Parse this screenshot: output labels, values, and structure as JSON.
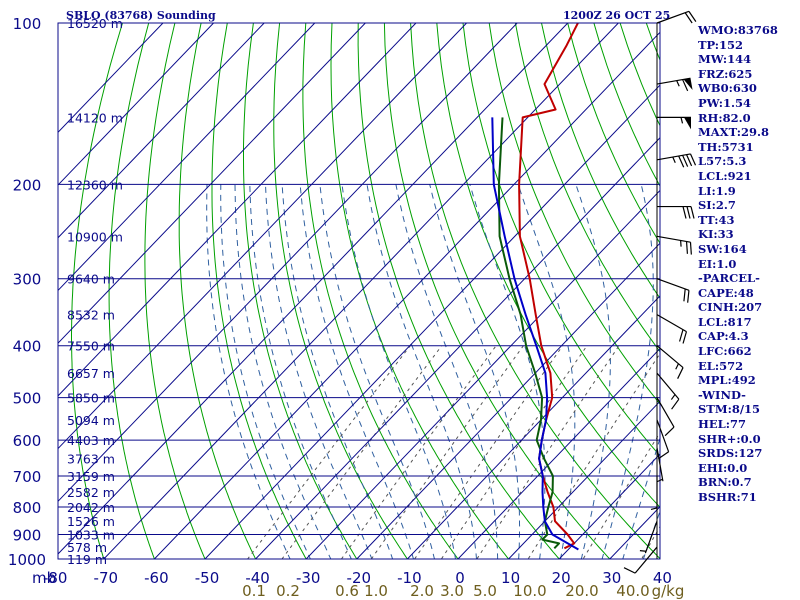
{
  "chart_data": {
    "type": "line",
    "title": "SBLO (83768) Sounding",
    "valid_time": "1200Z 26 OCT 25",
    "y_axis_label": "mb",
    "pressure_levels": [
      100,
      200,
      300,
      400,
      500,
      600,
      700,
      800,
      900,
      1000
    ],
    "temperature_ticks": [
      -80,
      -70,
      -60,
      -50,
      -40,
      -30,
      -20,
      -10,
      0,
      10,
      20,
      30,
      40
    ],
    "mixing_ratio_labels": [
      "0.1",
      "0.2",
      "0.6",
      "1.0",
      "2.0",
      "3.0",
      "5.0",
      "10.0",
      "20.0",
      "40.0",
      "g/kg"
    ],
    "height_labels": [
      {
        "p": 100,
        "text": "16520 m"
      },
      {
        "p": 150,
        "text": "14120 m"
      },
      {
        "p": 200,
        "text": "12360 m"
      },
      {
        "p": 250,
        "text": "10900 m"
      },
      {
        "p": 300,
        "text": "9640 m"
      },
      {
        "p": 350,
        "text": "8532 m"
      },
      {
        "p": 400,
        "text": "7550 m"
      },
      {
        "p": 450,
        "text": "6657 m"
      },
      {
        "p": 500,
        "text": "5850 m"
      },
      {
        "p": 550,
        "text": "5094 m"
      },
      {
        "p": 600,
        "text": "4403 m"
      },
      {
        "p": 650,
        "text": "3763 m"
      },
      {
        "p": 700,
        "text": "3159 m"
      },
      {
        "p": 750,
        "text": "2582 m"
      },
      {
        "p": 800,
        "text": "2042 m"
      },
      {
        "p": 850,
        "text": "1526 m"
      },
      {
        "p": 900,
        "text": "1033 m"
      },
      {
        "p": 950,
        "text": "578 m"
      },
      {
        "p": 1000,
        "text": "119 m"
      }
    ],
    "series": [
      {
        "name": "Temperature",
        "color": "#c00000",
        "points": [
          [
            955,
            19
          ],
          [
            935,
            20
          ],
          [
            900,
            17
          ],
          [
            850,
            12
          ],
          [
            800,
            9
          ],
          [
            750,
            5
          ],
          [
            700,
            1
          ],
          [
            650,
            -3
          ],
          [
            600,
            -6
          ],
          [
            550,
            -9
          ],
          [
            500,
            -12
          ],
          [
            450,
            -17
          ],
          [
            400,
            -24
          ],
          [
            350,
            -31
          ],
          [
            300,
            -39
          ],
          [
            250,
            -49
          ],
          [
            200,
            -59
          ],
          [
            150,
            -71
          ],
          [
            145,
            -66
          ],
          [
            130,
            -73
          ],
          [
            110,
            -76
          ],
          [
            100,
            -78
          ]
        ]
      },
      {
        "name": "Dewpoint",
        "color": "#0a5a0a",
        "points": [
          [
            955,
            17
          ],
          [
            935,
            17
          ],
          [
            920,
            13
          ],
          [
            900,
            13
          ],
          [
            850,
            10
          ],
          [
            800,
            8
          ],
          [
            750,
            6
          ],
          [
            700,
            3
          ],
          [
            650,
            -2
          ],
          [
            600,
            -7
          ],
          [
            550,
            -10
          ],
          [
            500,
            -14
          ],
          [
            450,
            -20
          ],
          [
            400,
            -27
          ],
          [
            350,
            -34
          ],
          [
            300,
            -43
          ],
          [
            250,
            -53
          ],
          [
            200,
            -63
          ],
          [
            150,
            -75
          ]
        ]
      },
      {
        "name": "Parcel",
        "color": "#0000c8",
        "points": [
          [
            960,
            22
          ],
          [
            900,
            14
          ],
          [
            850,
            10
          ],
          [
            800,
            7
          ],
          [
            750,
            4
          ],
          [
            700,
            1
          ],
          [
            650,
            -3
          ],
          [
            600,
            -6
          ],
          [
            550,
            -9
          ],
          [
            500,
            -13
          ],
          [
            450,
            -18
          ],
          [
            400,
            -25
          ],
          [
            350,
            -33
          ],
          [
            300,
            -42
          ],
          [
            250,
            -52
          ],
          [
            200,
            -64
          ],
          [
            150,
            -77
          ]
        ]
      }
    ],
    "wind_barbs": [
      {
        "p": 100,
        "dir": 70,
        "spd": 20
      },
      {
        "p": 130,
        "dir": 80,
        "spd": 65
      },
      {
        "p": 150,
        "dir": 90,
        "spd": 55
      },
      {
        "p": 180,
        "dir": 80,
        "spd": 45
      },
      {
        "p": 220,
        "dir": 90,
        "spd": 30
      },
      {
        "p": 250,
        "dir": 100,
        "spd": 25
      },
      {
        "p": 300,
        "dir": 110,
        "spd": 20
      },
      {
        "p": 350,
        "dir": 120,
        "spd": 20
      },
      {
        "p": 400,
        "dir": 130,
        "spd": 15
      },
      {
        "p": 450,
        "dir": 140,
        "spd": 15
      },
      {
        "p": 500,
        "dir": 150,
        "spd": 10
      },
      {
        "p": 550,
        "dir": 160,
        "spd": 10
      },
      {
        "p": 620,
        "dir": 170,
        "spd": 5
      },
      {
        "p": 700,
        "dir": 180,
        "spd": 5
      },
      {
        "p": 850,
        "dir": 200,
        "spd": 5
      },
      {
        "p": 950,
        "dir": 220,
        "spd": 10
      }
    ]
  },
  "indices": [
    "WMO:83768",
    "TP:152",
    "MW:144",
    "FRZ:625",
    "WB0:630",
    "PW:1.54",
    "RH:82.0",
    "MAXT:29.8",
    "TH:5731",
    "L57:5.3",
    "LCL:921",
    "LI:1.9",
    "SI:2.7",
    "TT:43",
    "KI:33",
    "SW:164",
    "EI:1.0",
    "-PARCEL-",
    "CAPE:48",
    "CINH:207",
    "LCL:817",
    "CAP:4.3",
    "LFC:662",
    "EL:572",
    "MPL:492",
    "-WIND-",
    "STM:8/15",
    "HEL:77",
    "SHR+:0.0",
    "SRDS:127",
    "EHI:0.0",
    "BRN:0.7",
    "BSHR:71"
  ],
  "colors": {
    "axis": "#0a0a8a",
    "isobar": "#0a0a8a",
    "isotherm": "#0a0a8a",
    "dry_adiabat": "#00a000",
    "moist_adiabat": "#3060a0",
    "mixing_ratio": "#3a6ac0",
    "mixing_label": "#6e5e1e",
    "temperature": "#c00000",
    "dewpoint": "#0a5a0a",
    "parcel": "#0000c8",
    "barbs": "#000000"
  }
}
